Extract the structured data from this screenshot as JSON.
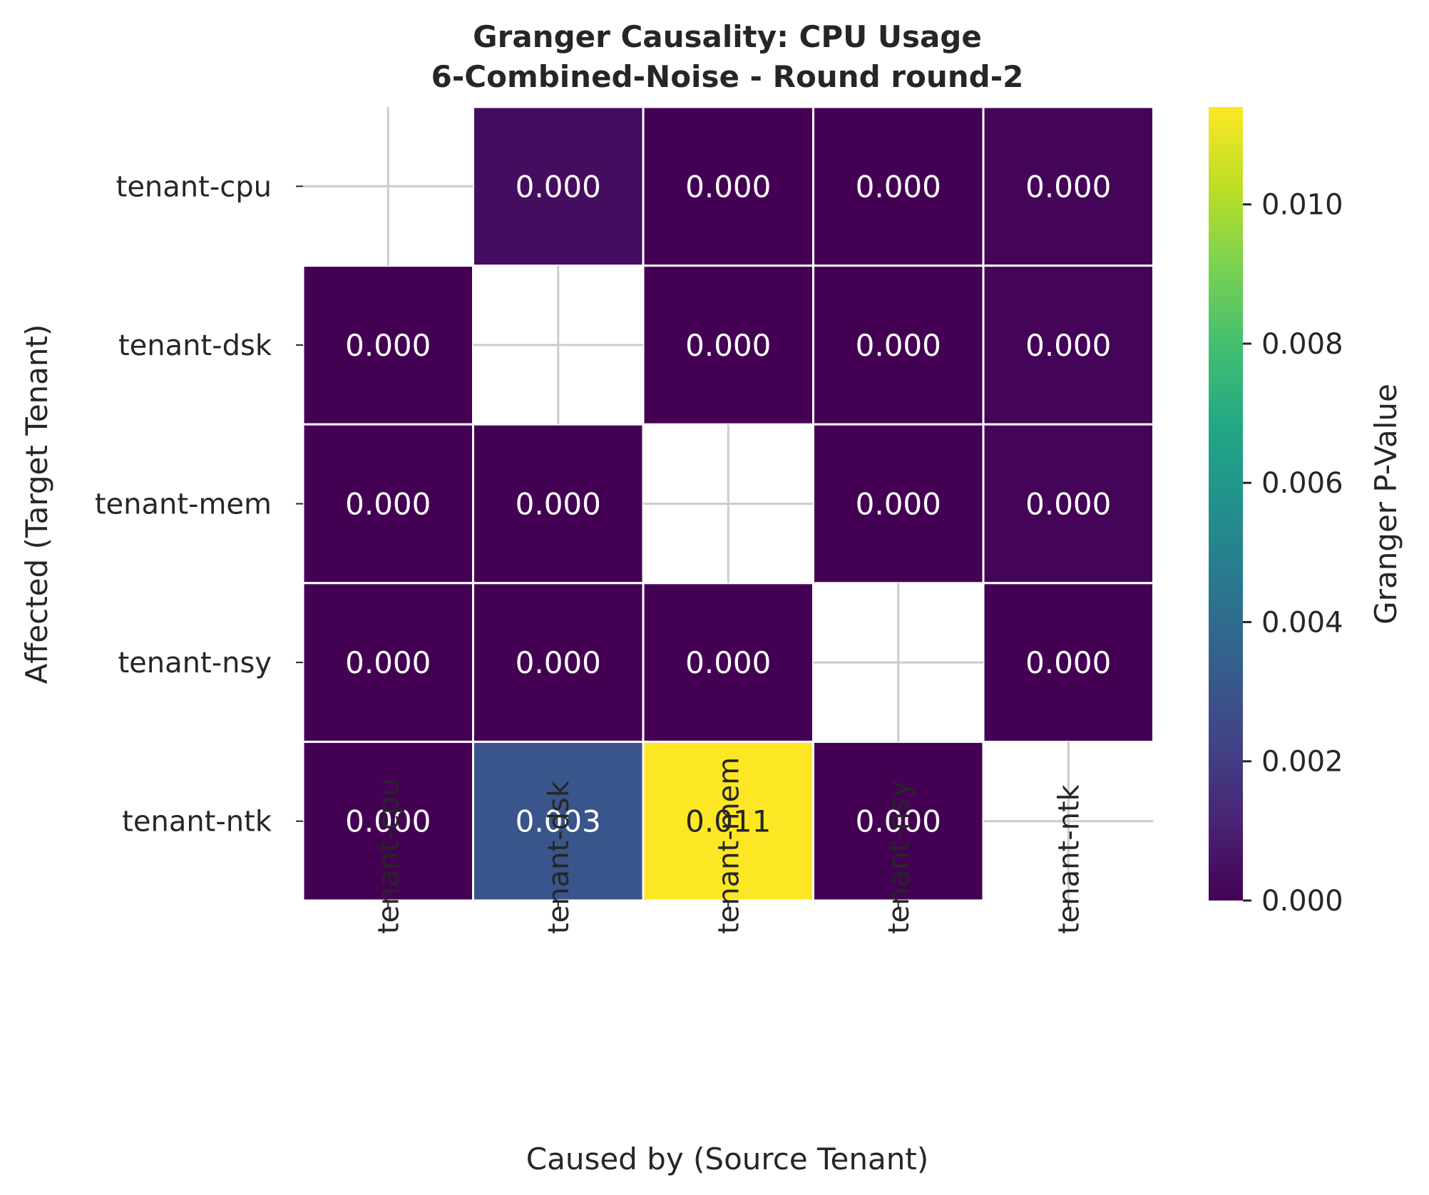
{
  "chart_data": {
    "type": "heatmap",
    "title": "Granger Causality: CPU Usage",
    "subtitle": "6-Combined-Noise - Round round-2",
    "xlabel": "Caused by (Source Tenant)",
    "ylabel": "Affected (Target Tenant)",
    "x_categories": [
      "tenant-cpu",
      "tenant-dsk",
      "tenant-mem",
      "tenant-nsy",
      "tenant-ntk"
    ],
    "y_categories": [
      "tenant-cpu",
      "tenant-dsk",
      "tenant-mem",
      "tenant-nsy",
      "tenant-ntk"
    ],
    "values": [
      [
        null,
        0.0004,
        0.0,
        0.0,
        0.0001
      ],
      [
        0.0,
        null,
        0.0,
        0.0,
        0.0001
      ],
      [
        0.0,
        0.0,
        null,
        0.0,
        0.0001
      ],
      [
        0.0,
        0.0,
        0.0,
        null,
        0.0
      ],
      [
        0.0,
        0.003,
        0.0114,
        0.0,
        null
      ]
    ],
    "cell_labels": [
      [
        "",
        "0.000",
        "0.000",
        "0.000",
        "0.000"
      ],
      [
        "0.000",
        "",
        "0.000",
        "0.000",
        "0.000"
      ],
      [
        "0.000",
        "0.000",
        "",
        "0.000",
        "0.000"
      ],
      [
        "0.000",
        "0.000",
        "0.000",
        "",
        "0.000"
      ],
      [
        "0.000",
        "0.003",
        "0.011",
        "0.000",
        ""
      ]
    ],
    "colormap": "viridis",
    "colorbar": {
      "label": "Granger P-Value",
      "range": [
        0.0,
        0.0114
      ],
      "ticks": [
        0.0,
        0.002,
        0.004,
        0.006,
        0.008,
        0.01
      ],
      "tick_labels": [
        "0.000",
        "0.002",
        "0.004",
        "0.006",
        "0.008",
        "0.010"
      ]
    },
    "diagonal_marker": "cross",
    "grid": false
  }
}
